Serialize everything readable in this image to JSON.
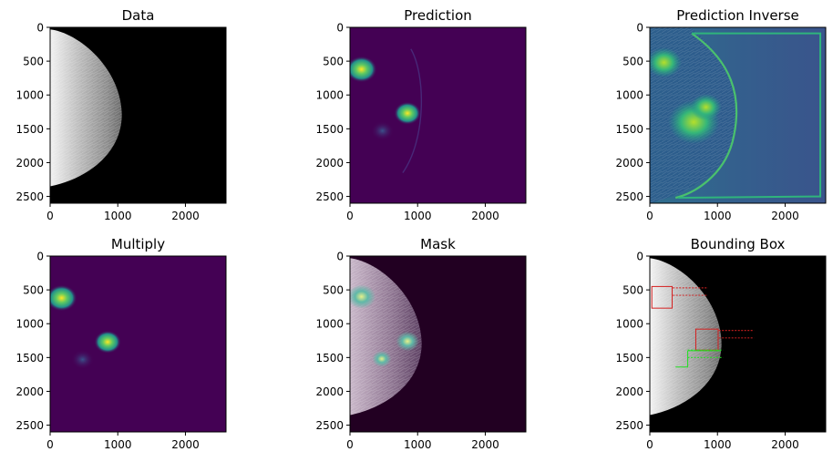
{
  "figure": {
    "layout": "2x3 image grid",
    "colors": {
      "viridis_dark": "#440154",
      "viridis_mid": "#21918c",
      "viridis_bright": "#fde725",
      "box_red": "#d42020",
      "box_green": "#22e022"
    }
  },
  "chart_data": [
    {
      "type": "heatmap",
      "title": "Data",
      "colormap": "gray",
      "content": "mammogram",
      "xlim": [
        0,
        2600
      ],
      "ylim": [
        2600,
        0
      ],
      "xticks": [
        0,
        1000,
        2000
      ],
      "yticks": [
        0,
        500,
        1000,
        1500,
        2000,
        2500
      ]
    },
    {
      "type": "heatmap",
      "title": "Prediction",
      "colormap": "viridis",
      "content": "prediction",
      "xlim": [
        0,
        2600
      ],
      "ylim": [
        2600,
        0
      ],
      "xticks": [
        0,
        1000,
        2000
      ],
      "yticks": [
        0,
        500,
        1000,
        1500,
        2000,
        2500
      ]
    },
    {
      "type": "heatmap",
      "title": "Prediction Inverse",
      "colormap": "viridis",
      "content": "inverse",
      "xlim": [
        0,
        2600
      ],
      "ylim": [
        2600,
        0
      ],
      "xticks": [
        0,
        1000,
        2000
      ],
      "yticks": [
        0,
        500,
        1000,
        1500,
        2000,
        2500
      ]
    },
    {
      "type": "heatmap",
      "title": "Multiply",
      "colormap": "viridis",
      "content": "multiply",
      "xlim": [
        0,
        2600
      ],
      "ylim": [
        2600,
        0
      ],
      "xticks": [
        0,
        1000,
        2000
      ],
      "yticks": [
        0,
        500,
        1000,
        1500,
        2000,
        2500
      ]
    },
    {
      "type": "heatmap",
      "title": "Mask",
      "colormap": "overlay",
      "content": "mask",
      "xlim": [
        0,
        2600
      ],
      "ylim": [
        2600,
        0
      ],
      "xticks": [
        0,
        1000,
        2000
      ],
      "yticks": [
        0,
        500,
        1000,
        1500,
        2000,
        2500
      ]
    },
    {
      "type": "heatmap",
      "title": "Bounding Box",
      "colormap": "gray",
      "content": "bbox",
      "xlim": [
        0,
        2600
      ],
      "ylim": [
        2600,
        0
      ],
      "xticks": [
        0,
        1000,
        2000
      ],
      "yticks": [
        0,
        500,
        1000,
        1500,
        2000,
        2500
      ]
    }
  ]
}
